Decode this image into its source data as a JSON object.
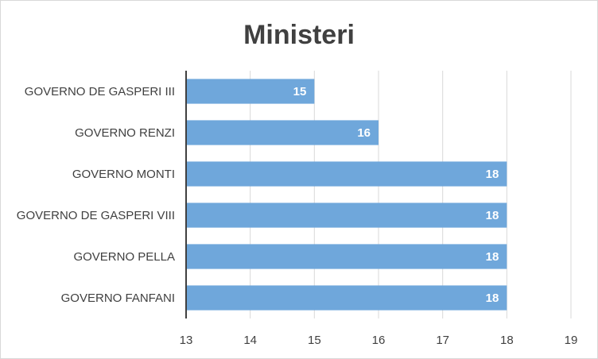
{
  "chart_data": {
    "type": "bar",
    "orientation": "horizontal",
    "title": "Ministeri",
    "categories": [
      "GOVERNO DE GASPERI III",
      "GOVERNO RENZI",
      "GOVERNO MONTI",
      "GOVERNO DE GASPERI VIII",
      "GOVERNO PELLA",
      "GOVERNO FANFANI"
    ],
    "values": [
      15,
      16,
      18,
      18,
      18,
      18
    ],
    "xlim": [
      13,
      19
    ],
    "xticks": [
      13,
      14,
      15,
      16,
      17,
      18,
      19
    ],
    "grid": true,
    "legend": "none",
    "bar_color": "#6fa7db",
    "xlabel": "",
    "ylabel": ""
  }
}
